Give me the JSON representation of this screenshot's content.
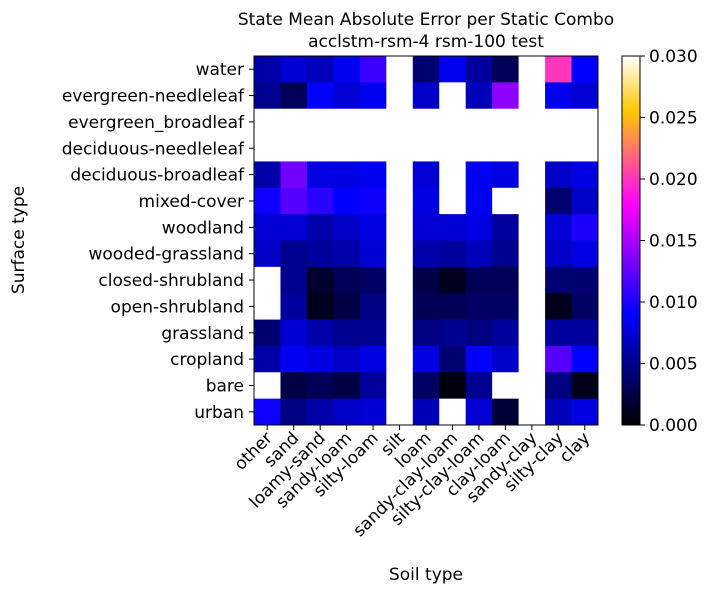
{
  "chart_data": {
    "type": "heatmap",
    "title": "State Mean Absolute Error per Static Combo",
    "subtitle": "acclstm-rsm-4 rsm-100 test",
    "xlabel": "Soil type",
    "ylabel": "Surface type",
    "x_categories": [
      "other",
      "sand",
      "loamy-sand",
      "sandy-loam",
      "silty-loam",
      "silt",
      "loam",
      "sandy-clay-loam",
      "silty-clay-loam",
      "clay-loam",
      "sandy-clay",
      "silty-clay",
      "clay"
    ],
    "y_categories": [
      "water",
      "evergreen-needleleaf",
      "evergreen_broadleaf",
      "deciduous-needleleaf",
      "deciduous-broadleaf",
      "mixed-cover",
      "woodland",
      "wooded-grassland",
      "closed-shrubland",
      "open-shrubland",
      "grassland",
      "cropland",
      "bare",
      "urban"
    ],
    "values": [
      [
        0.006,
        0.0075,
        0.0065,
        0.0085,
        0.011,
        null,
        0.004,
        0.0085,
        0.0055,
        0.003,
        null,
        0.02,
        0.009
      ],
      [
        0.005,
        0.003,
        0.009,
        0.0075,
        0.0085,
        null,
        0.007,
        null,
        0.0065,
        0.014,
        null,
        0.0085,
        0.0075
      ],
      [
        null,
        null,
        null,
        null,
        null,
        null,
        null,
        null,
        null,
        null,
        null,
        null,
        null
      ],
      [
        null,
        null,
        null,
        null,
        null,
        null,
        null,
        null,
        null,
        null,
        null,
        null,
        null
      ],
      [
        0.006,
        0.013,
        0.008,
        0.008,
        0.0085,
        null,
        0.0075,
        null,
        0.0085,
        0.008,
        null,
        0.007,
        0.008
      ],
      [
        0.0095,
        0.012,
        0.0105,
        0.009,
        0.0095,
        null,
        0.008,
        null,
        0.0085,
        null,
        null,
        0.004,
        0.007
      ],
      [
        0.0075,
        0.0075,
        0.006,
        0.007,
        0.008,
        null,
        0.0075,
        0.0075,
        0.008,
        0.0055,
        null,
        0.0075,
        0.01
      ],
      [
        0.007,
        0.005,
        0.0055,
        0.006,
        0.0075,
        null,
        0.006,
        0.0055,
        0.0065,
        0.005,
        null,
        0.007,
        0.008
      ],
      [
        null,
        0.005,
        0.0015,
        0.003,
        0.0035,
        null,
        0.0025,
        0.001,
        0.003,
        0.003,
        null,
        0.004,
        0.004
      ],
      [
        null,
        0.0055,
        0.001,
        0.0025,
        0.0045,
        null,
        0.003,
        0.003,
        0.0035,
        0.0035,
        null,
        0.001,
        0.0035
      ],
      [
        0.004,
        0.0075,
        0.006,
        0.005,
        0.005,
        null,
        0.0045,
        0.005,
        0.0045,
        0.0055,
        null,
        0.0055,
        0.0055
      ],
      [
        0.006,
        0.0085,
        0.008,
        0.007,
        0.008,
        null,
        0.008,
        0.004,
        0.009,
        0.007,
        null,
        0.012,
        0.009
      ],
      [
        null,
        0.0025,
        0.003,
        0.0025,
        0.0055,
        null,
        0.0035,
        0.0005,
        0.005,
        null,
        null,
        0.0045,
        0.001
      ],
      [
        0.0095,
        0.0045,
        0.006,
        0.007,
        0.0075,
        null,
        0.0065,
        null,
        0.0075,
        0.002,
        null,
        0.0065,
        0.008
      ]
    ],
    "colormap": "gnuplot2",
    "colorbar": {
      "range": [
        0.0,
        0.03
      ],
      "ticks": [
        0.0,
        0.005,
        0.01,
        0.015,
        0.02,
        0.025,
        0.03
      ],
      "tick_labels": [
        "0.000",
        "0.005",
        "0.010",
        "0.015",
        "0.020",
        "0.025",
        "0.030"
      ]
    },
    "grid": false,
    "legend": "colorbar-right"
  }
}
